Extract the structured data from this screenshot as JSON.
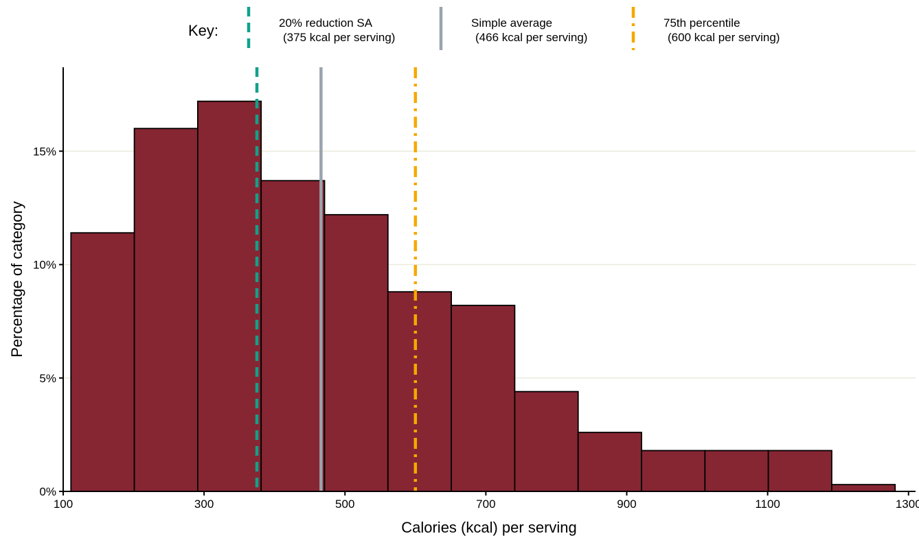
{
  "chart_data": {
    "type": "bar",
    "subtype": "histogram",
    "xlabel": "Calories (kcal) per serving",
    "ylabel": "Percentage of category",
    "xlim": [
      100,
      1310
    ],
    "ylim": [
      0,
      18.7
    ],
    "xticks": [
      100,
      300,
      500,
      700,
      900,
      1100,
      1300
    ],
    "yticks": [
      0,
      5,
      10,
      15
    ],
    "ytick_labels": [
      "0%",
      "5%",
      "10%",
      "15%"
    ],
    "grid": "horizontal",
    "bins": [
      {
        "start": 111,
        "end": 201,
        "value": 11.4
      },
      {
        "start": 201,
        "end": 291,
        "value": 16.0
      },
      {
        "start": 291,
        "end": 381,
        "value": 17.2
      },
      {
        "start": 381,
        "end": 471,
        "value": 13.7
      },
      {
        "start": 471,
        "end": 561,
        "value": 12.2
      },
      {
        "start": 561,
        "end": 651,
        "value": 8.8
      },
      {
        "start": 651,
        "end": 741,
        "value": 8.2
      },
      {
        "start": 741,
        "end": 831,
        "value": 4.4
      },
      {
        "start": 831,
        "end": 921,
        "value": 2.6
      },
      {
        "start": 921,
        "end": 1011,
        "value": 1.8
      },
      {
        "start": 1011,
        "end": 1101,
        "value": 1.8
      },
      {
        "start": 1101,
        "end": 1191,
        "value": 1.8
      },
      {
        "start": 1191,
        "end": 1281,
        "value": 0.3
      }
    ],
    "bar_color": "#862633",
    "reference_lines": [
      {
        "x": 375,
        "label_line1": "20% reduction SA",
        "label_line2": "(375 kcal per serving)",
        "color": "#12A18A",
        "style": "dashed"
      },
      {
        "x": 466,
        "label_line1": "Simple average",
        "label_line2": "(466 kcal per serving)",
        "color": "#99A4AE",
        "style": "solid"
      },
      {
        "x": 600,
        "label_line1": "75th percentile",
        "label_line2": "(600 kcal per serving)",
        "color": "#F6A800",
        "style": "dashdot"
      }
    ],
    "legend": {
      "title": "Key:",
      "position": "top"
    }
  }
}
